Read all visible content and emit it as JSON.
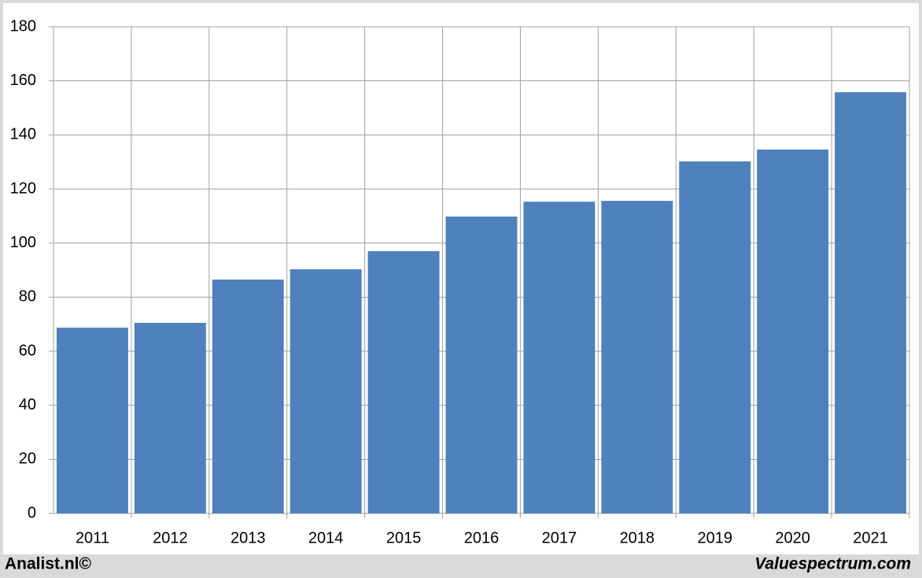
{
  "chart_data": {
    "type": "bar",
    "categories": [
      "2011",
      "2012",
      "2013",
      "2014",
      "2015",
      "2016",
      "2017",
      "2018",
      "2019",
      "2020",
      "2021"
    ],
    "values": [
      68.7,
      70.5,
      86.5,
      90.3,
      97,
      109.8,
      115.3,
      115.6,
      130.2,
      134.6,
      155.8
    ],
    "color": "#4f81bd",
    "ylim": [
      0,
      180
    ],
    "yticks": [
      0,
      20,
      40,
      60,
      80,
      100,
      120,
      140,
      160,
      180
    ],
    "grid": true,
    "footer_left": "Analist.nl©",
    "footer_right": "Valuespectrum.com"
  }
}
